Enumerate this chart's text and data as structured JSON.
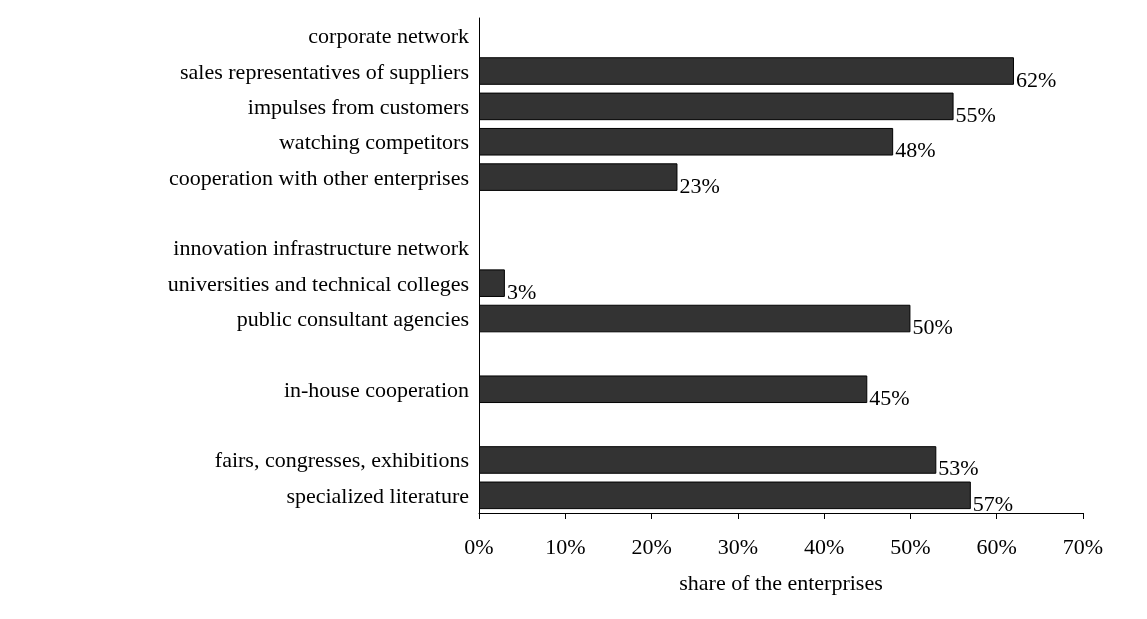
{
  "chart_data": {
    "type": "bar",
    "orientation": "horizontal",
    "xlabel": "share of the enterprises",
    "categories": [
      "corporate network",
      "sales representatives of suppliers",
      "impulses from customers",
      "watching competitors",
      "cooperation with other enterprises",
      null,
      "innovation infrastructure network",
      "universities and technical colleges",
      "public consultant agencies",
      null,
      "in-house cooperation",
      null,
      "fairs, congresses, exhibitions",
      "specialized literature"
    ],
    "values": [
      null,
      62,
      55,
      48,
      23,
      null,
      null,
      3,
      50,
      null,
      45,
      null,
      53,
      57
    ],
    "value_labels": [
      null,
      "62%",
      "55%",
      "48%",
      "23%",
      null,
      null,
      "3%",
      "50%",
      null,
      "45%",
      null,
      "53%",
      "57%"
    ],
    "color": "#333333",
    "xlim": [
      0,
      70
    ],
    "xticks": [
      {
        "value": 0,
        "label": "0%"
      },
      {
        "value": 10,
        "label": "10%"
      },
      {
        "value": 20,
        "label": "20%"
      },
      {
        "value": 30,
        "label": "30%"
      },
      {
        "value": 40,
        "label": "40%"
      },
      {
        "value": 50,
        "label": "50%"
      },
      {
        "value": 60,
        "label": "60%"
      },
      {
        "value": 70,
        "label": "70%"
      }
    ],
    "grid": false
  }
}
